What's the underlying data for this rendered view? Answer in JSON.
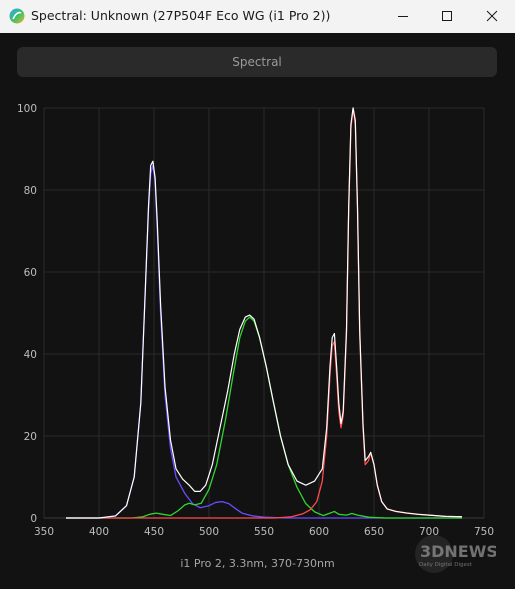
{
  "window": {
    "title": "Spectral: Unknown (27P504F Eco WG (i1 Pro 2))"
  },
  "tab": {
    "label": "Spectral"
  },
  "caption": "i1 Pro 2, 3.3nm, 370-730nm",
  "watermark": {
    "brand": "3DNEWS",
    "tagline": "Daily Digital Digest"
  },
  "colors": {
    "total": "#ffffff",
    "blue": "#6a4cff",
    "green": "#2fd62f",
    "red": "#ff4b4b",
    "grid": "#2a2a2a"
  },
  "chart_data": {
    "type": "line",
    "xlim": [
      350,
      750
    ],
    "ylim": [
      0,
      100
    ],
    "x_ticks": [
      350,
      400,
      450,
      500,
      550,
      600,
      650,
      700,
      750
    ],
    "y_ticks": [
      0,
      20,
      40,
      60,
      80,
      100
    ],
    "grid": true,
    "series": [
      {
        "color_key": "blue",
        "points": [
          [
            370,
            0
          ],
          [
            400,
            0
          ],
          [
            415,
            0.5
          ],
          [
            425,
            3
          ],
          [
            432,
            10
          ],
          [
            438,
            28
          ],
          [
            442,
            55
          ],
          [
            445,
            75
          ],
          [
            447,
            84
          ],
          [
            449,
            86
          ],
          [
            451,
            82
          ],
          [
            453,
            70
          ],
          [
            456,
            50
          ],
          [
            460,
            30
          ],
          [
            465,
            17
          ],
          [
            470,
            10
          ],
          [
            478,
            6
          ],
          [
            485,
            3.5
          ],
          [
            492,
            2.5
          ],
          [
            500,
            3
          ],
          [
            506,
            3.8
          ],
          [
            512,
            4
          ],
          [
            518,
            3.5
          ],
          [
            524,
            2.3
          ],
          [
            530,
            1.2
          ],
          [
            540,
            0.5
          ],
          [
            550,
            0.2
          ],
          [
            570,
            0
          ],
          [
            730,
            0
          ]
        ]
      },
      {
        "color_key": "green",
        "points": [
          [
            370,
            0
          ],
          [
            430,
            0
          ],
          [
            440,
            0.3
          ],
          [
            446,
            0.9
          ],
          [
            452,
            1.2
          ],
          [
            458,
            0.9
          ],
          [
            465,
            0.6
          ],
          [
            472,
            1.8
          ],
          [
            478,
            3.2
          ],
          [
            482,
            3.6
          ],
          [
            487,
            3.2
          ],
          [
            493,
            3.6
          ],
          [
            500,
            7
          ],
          [
            507,
            13
          ],
          [
            515,
            24
          ],
          [
            522,
            35
          ],
          [
            528,
            44
          ],
          [
            533,
            48
          ],
          [
            537,
            49
          ],
          [
            541,
            48
          ],
          [
            546,
            44
          ],
          [
            552,
            37
          ],
          [
            558,
            29
          ],
          [
            565,
            20
          ],
          [
            572,
            13
          ],
          [
            580,
            7.5
          ],
          [
            588,
            3.5
          ],
          [
            596,
            1.5
          ],
          [
            604,
            0.6
          ],
          [
            610,
            1.2
          ],
          [
            614,
            1.6
          ],
          [
            618,
            0.9
          ],
          [
            625,
            0.7
          ],
          [
            630,
            1.1
          ],
          [
            635,
            0.7
          ],
          [
            645,
            0.2
          ],
          [
            660,
            0
          ],
          [
            730,
            0
          ]
        ]
      },
      {
        "color_key": "red",
        "points": [
          [
            370,
            0
          ],
          [
            560,
            0
          ],
          [
            575,
            0.3
          ],
          [
            585,
            1
          ],
          [
            592,
            2
          ],
          [
            598,
            4
          ],
          [
            603,
            9
          ],
          [
            607,
            20
          ],
          [
            610,
            35
          ],
          [
            612,
            42
          ],
          [
            614,
            43
          ],
          [
            616,
            35
          ],
          [
            618,
            26
          ],
          [
            620,
            22
          ],
          [
            622,
            25
          ],
          [
            625,
            45
          ],
          [
            627,
            75
          ],
          [
            629,
            95
          ],
          [
            631,
            100
          ],
          [
            633,
            96
          ],
          [
            635,
            75
          ],
          [
            637,
            45
          ],
          [
            640,
            22
          ],
          [
            642,
            13
          ],
          [
            645,
            14
          ],
          [
            647,
            16
          ],
          [
            650,
            13
          ],
          [
            653,
            8
          ],
          [
            657,
            4
          ],
          [
            662,
            2.2
          ],
          [
            670,
            1.6
          ],
          [
            680,
            1.2
          ],
          [
            690,
            0.9
          ],
          [
            700,
            0.7
          ],
          [
            715,
            0.4
          ],
          [
            730,
            0.3
          ]
        ]
      },
      {
        "color_key": "total",
        "points": [
          [
            370,
            0
          ],
          [
            400,
            0
          ],
          [
            415,
            0.5
          ],
          [
            425,
            3
          ],
          [
            432,
            10
          ],
          [
            438,
            28
          ],
          [
            442,
            55
          ],
          [
            445,
            76
          ],
          [
            447,
            86
          ],
          [
            449,
            87
          ],
          [
            451,
            83
          ],
          [
            453,
            72
          ],
          [
            456,
            52
          ],
          [
            460,
            32
          ],
          [
            465,
            19
          ],
          [
            470,
            12
          ],
          [
            476,
            9.5
          ],
          [
            482,
            8
          ],
          [
            487,
            6.5
          ],
          [
            492,
            6.5
          ],
          [
            497,
            8
          ],
          [
            503,
            13
          ],
          [
            510,
            22
          ],
          [
            517,
            31
          ],
          [
            523,
            40
          ],
          [
            528,
            46
          ],
          [
            533,
            49
          ],
          [
            537,
            49.5
          ],
          [
            541,
            48.5
          ],
          [
            546,
            44
          ],
          [
            552,
            37
          ],
          [
            558,
            29
          ],
          [
            565,
            20
          ],
          [
            572,
            13
          ],
          [
            580,
            9
          ],
          [
            588,
            8
          ],
          [
            596,
            9
          ],
          [
            603,
            12
          ],
          [
            607,
            22
          ],
          [
            610,
            37
          ],
          [
            612,
            44
          ],
          [
            614,
            45
          ],
          [
            616,
            37
          ],
          [
            618,
            28
          ],
          [
            620,
            23
          ],
          [
            622,
            26
          ],
          [
            625,
            46
          ],
          [
            627,
            76
          ],
          [
            629,
            96
          ],
          [
            631,
            100
          ],
          [
            633,
            97
          ],
          [
            635,
            76
          ],
          [
            637,
            46
          ],
          [
            640,
            23
          ],
          [
            642,
            14
          ],
          [
            645,
            15
          ],
          [
            647,
            16
          ],
          [
            650,
            13
          ],
          [
            653,
            8
          ],
          [
            657,
            4
          ],
          [
            662,
            2.2
          ],
          [
            670,
            1.6
          ],
          [
            680,
            1.2
          ],
          [
            690,
            0.9
          ],
          [
            700,
            0.7
          ],
          [
            715,
            0.4
          ],
          [
            730,
            0.3
          ]
        ]
      }
    ]
  }
}
